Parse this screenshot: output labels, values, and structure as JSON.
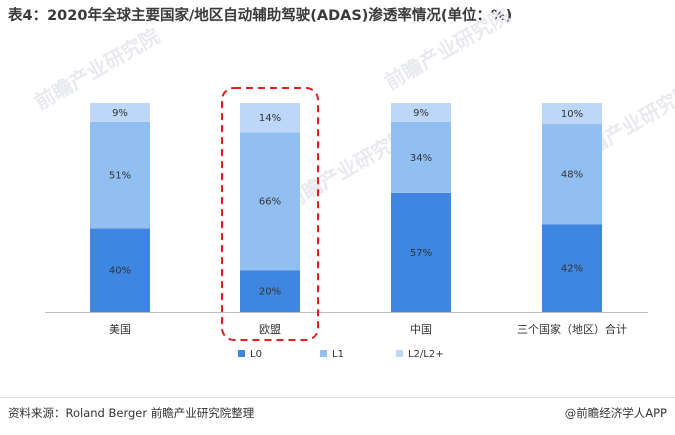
{
  "title": "表4：2020年全球主要国家/地区自动辅助驾驶(ADAS)渗透率情况(单位：%)",
  "source": "资料来源：Roland Berger 前瞻产业研究院整理",
  "brand": "@前瞻经济学人APP",
  "watermark": "前瞻产业研究院",
  "colors": {
    "L0": "#3f86e0",
    "L1": "#92bff2",
    "L2": "#bdd7f8",
    "highlight": "#e02020"
  },
  "chart_data": {
    "type": "bar",
    "stacked": true,
    "categories": [
      "美国",
      "欧盟",
      "中国",
      "三个国家（地区）合计"
    ],
    "series": [
      {
        "name": "L0",
        "values": [
          40,
          20,
          57,
          42
        ]
      },
      {
        "name": "L1",
        "values": [
          51,
          66,
          34,
          48
        ]
      },
      {
        "name": "L2/L2+",
        "values": [
          9,
          14,
          9,
          10
        ]
      }
    ],
    "value_labels": [
      [
        "40%",
        "20%",
        "57%",
        "42%"
      ],
      [
        "51%",
        "66%",
        "34%",
        "48%"
      ],
      [
        "9%",
        "14%",
        "9%",
        "10%"
      ]
    ],
    "ylim": [
      0,
      100
    ],
    "legend_position": "bottom",
    "highlighted_category": "欧盟",
    "grid": false
  }
}
